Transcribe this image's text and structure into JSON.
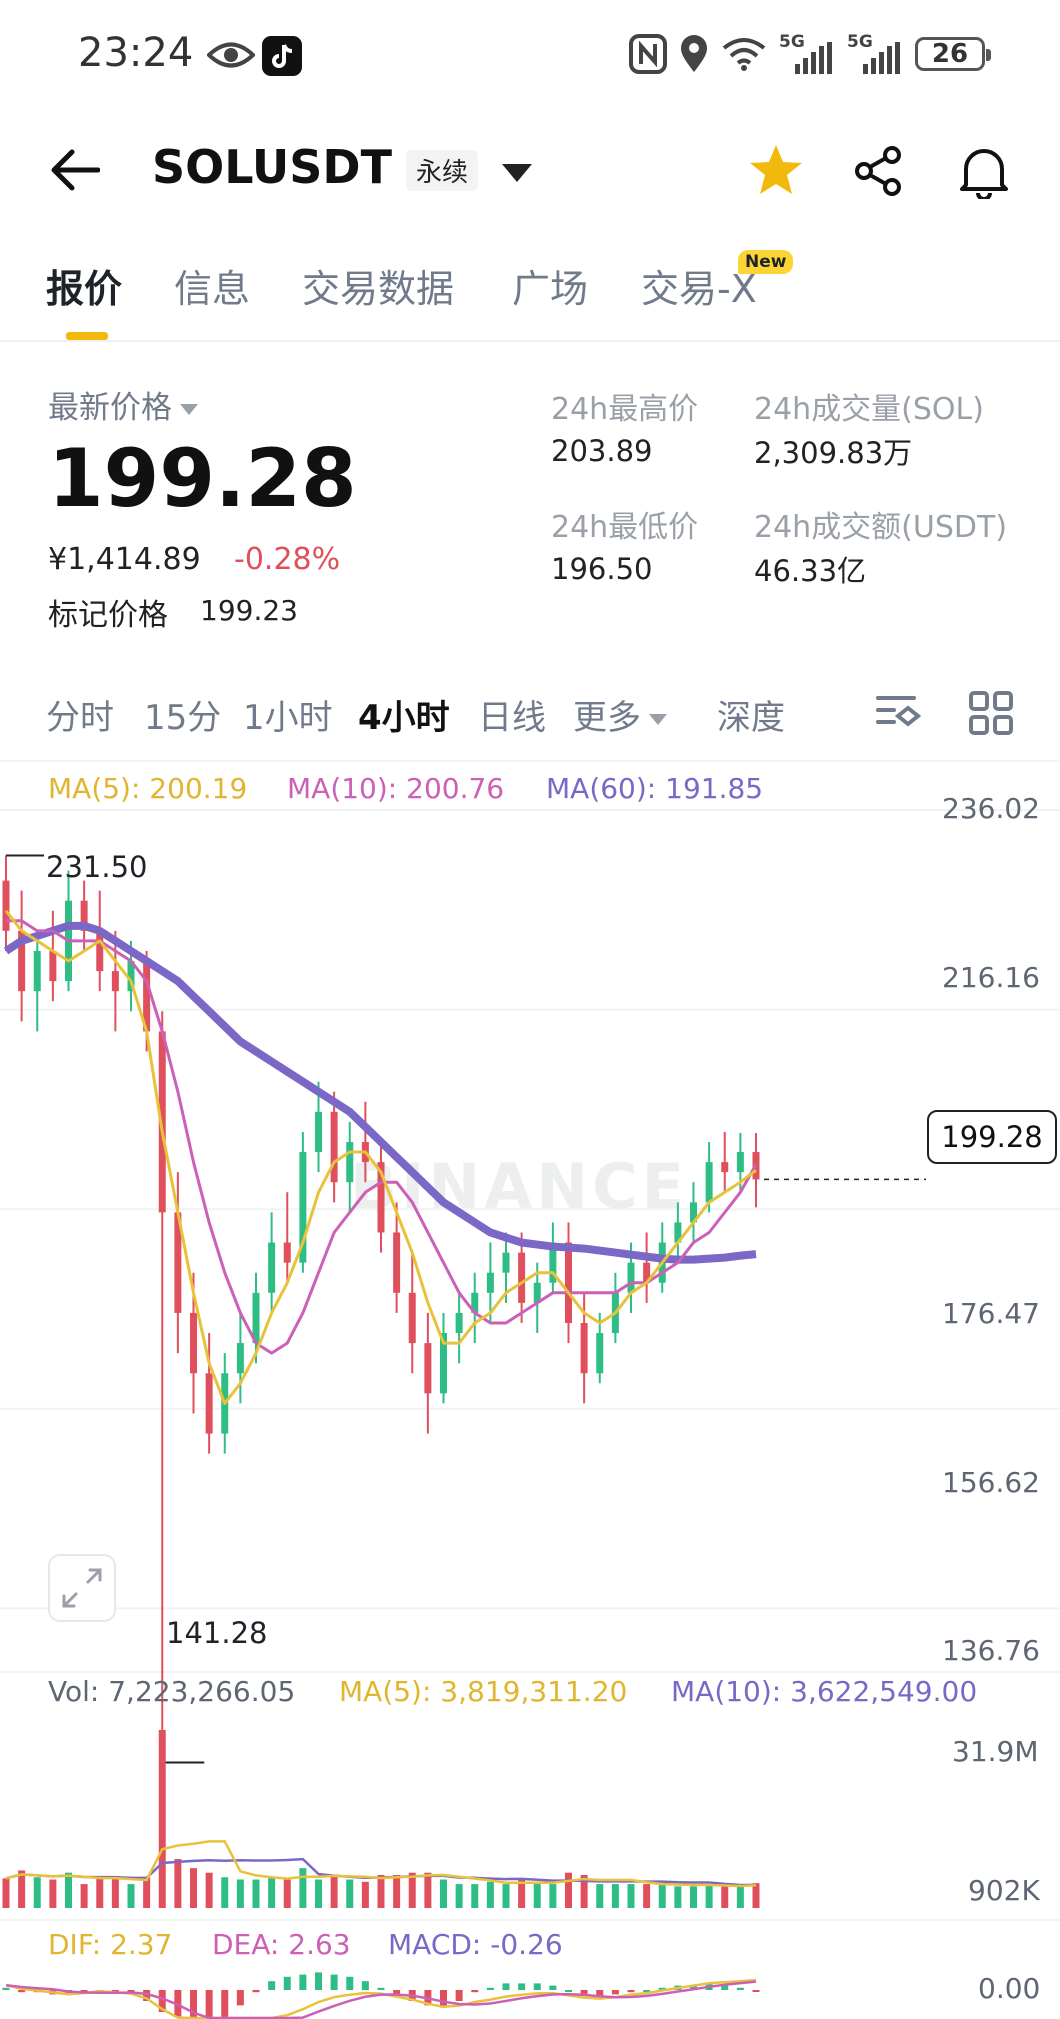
{
  "status_bar": {
    "time": "23:24",
    "battery": "26",
    "net1": "5G",
    "net2": "5G"
  },
  "header": {
    "symbol": "SOLUSDT",
    "contract_tag": "永续"
  },
  "tabs": [
    {
      "label": "报价",
      "active": true
    },
    {
      "label": "信息",
      "active": false
    },
    {
      "label": "交易数据",
      "active": false
    },
    {
      "label": "广场",
      "active": false
    },
    {
      "label": "交易-X",
      "active": false,
      "badge": "New"
    }
  ],
  "ticker": {
    "last_price_label": "最新价格",
    "last_price": "199.28",
    "cny_price": "¥1,414.89",
    "change_pct": "-0.28%",
    "mark_price_label": "标记价格",
    "mark_price": "199.23",
    "high_label": "24h最高价",
    "high": "203.89",
    "low_label": "24h最低价",
    "low": "196.50",
    "vol_label": "24h成交量(SOL)",
    "vol": "2,309.83万",
    "turnover_label": "24h成交额(USDT)",
    "turnover": "46.33亿"
  },
  "periods": [
    "分时",
    "15分",
    "1小时",
    "4小时",
    "日线",
    "更多",
    "深度"
  ],
  "active_period": "4小时",
  "indicators": {
    "ma5": "MA(5): 200.19",
    "ma10": "MA(10): 200.76",
    "ma60": "MA(60): 191.85",
    "vol": "Vol: 7,223,266.05",
    "vol_ma5": "MA(5): 3,819,311.20",
    "vol_ma10": "MA(10): 3,622,549.00",
    "dif": "DIF: 2.37",
    "dea": "DEA: 2.63",
    "macd": "MACD: -0.26"
  },
  "axis": {
    "price_ticks": [
      "236.02",
      "216.16",
      "196.31",
      "176.47",
      "156.62",
      "136.76"
    ],
    "vol_ticks": [
      "31.9M",
      "902K"
    ],
    "macd_tick": "0.00",
    "current_price_tag": "199.28",
    "high_marker": "231.50",
    "low_marker": "141.28"
  },
  "watermark": "BINANCE",
  "colors": {
    "up": "#2ebd85",
    "down": "#e0505c",
    "ma5": "#e8c23a",
    "ma10": "#cc5fb6",
    "ma60": "#7b68c6",
    "accent": "#f0b90b"
  },
  "chart_data": {
    "type": "candlestick",
    "interval": "4h",
    "ylim": [
      136.76,
      236.02
    ],
    "candles": [
      {
        "o": 229,
        "h": 231.5,
        "l": 222,
        "c": 224
      },
      {
        "o": 224,
        "h": 228,
        "l": 215,
        "c": 218
      },
      {
        "o": 218,
        "h": 224,
        "l": 214,
        "c": 222
      },
      {
        "o": 222,
        "h": 226,
        "l": 217,
        "c": 219
      },
      {
        "o": 219,
        "h": 230,
        "l": 218,
        "c": 227
      },
      {
        "o": 227,
        "h": 229,
        "l": 222,
        "c": 224
      },
      {
        "o": 224,
        "h": 228,
        "l": 218,
        "c": 220
      },
      {
        "o": 220,
        "h": 224,
        "l": 214,
        "c": 218
      },
      {
        "o": 218,
        "h": 223,
        "l": 216,
        "c": 221
      },
      {
        "o": 221,
        "h": 222,
        "l": 212,
        "c": 214
      },
      {
        "o": 214,
        "h": 216,
        "l": 141.28,
        "c": 196
      },
      {
        "o": 196,
        "h": 200,
        "l": 182,
        "c": 186
      },
      {
        "o": 186,
        "h": 190,
        "l": 176,
        "c": 180
      },
      {
        "o": 180,
        "h": 184,
        "l": 172,
        "c": 174
      },
      {
        "o": 174,
        "h": 182,
        "l": 172,
        "c": 180
      },
      {
        "o": 180,
        "h": 186,
        "l": 177,
        "c": 183
      },
      {
        "o": 183,
        "h": 190,
        "l": 181,
        "c": 188
      },
      {
        "o": 188,
        "h": 196,
        "l": 186,
        "c": 193
      },
      {
        "o": 193,
        "h": 198,
        "l": 189,
        "c": 191
      },
      {
        "o": 191,
        "h": 204,
        "l": 190,
        "c": 202
      },
      {
        "o": 202,
        "h": 209,
        "l": 200,
        "c": 206
      },
      {
        "o": 206,
        "h": 208,
        "l": 197,
        "c": 199
      },
      {
        "o": 199,
        "h": 205,
        "l": 196,
        "c": 203
      },
      {
        "o": 203,
        "h": 207,
        "l": 199,
        "c": 201
      },
      {
        "o": 201,
        "h": 203,
        "l": 192,
        "c": 194
      },
      {
        "o": 194,
        "h": 197,
        "l": 186,
        "c": 188
      },
      {
        "o": 188,
        "h": 192,
        "l": 180,
        "c": 183
      },
      {
        "o": 183,
        "h": 186,
        "l": 174,
        "c": 178
      },
      {
        "o": 178,
        "h": 186,
        "l": 177,
        "c": 184
      },
      {
        "o": 184,
        "h": 188,
        "l": 181,
        "c": 186
      },
      {
        "o": 186,
        "h": 190,
        "l": 183,
        "c": 188
      },
      {
        "o": 188,
        "h": 193,
        "l": 185,
        "c": 190
      },
      {
        "o": 190,
        "h": 194,
        "l": 187,
        "c": 192
      },
      {
        "o": 192,
        "h": 194,
        "l": 185,
        "c": 187
      },
      {
        "o": 187,
        "h": 191,
        "l": 184,
        "c": 189
      },
      {
        "o": 189,
        "h": 195,
        "l": 188,
        "c": 193
      },
      {
        "o": 193,
        "h": 195,
        "l": 183,
        "c": 185
      },
      {
        "o": 185,
        "h": 188,
        "l": 177,
        "c": 180
      },
      {
        "o": 180,
        "h": 186,
        "l": 179,
        "c": 184
      },
      {
        "o": 184,
        "h": 190,
        "l": 183,
        "c": 188
      },
      {
        "o": 188,
        "h": 193,
        "l": 186,
        "c": 191
      },
      {
        "o": 191,
        "h": 194,
        "l": 187,
        "c": 189
      },
      {
        "o": 189,
        "h": 195,
        "l": 188,
        "c": 193
      },
      {
        "o": 193,
        "h": 197,
        "l": 191,
        "c": 195
      },
      {
        "o": 195,
        "h": 199,
        "l": 193,
        "c": 197
      },
      {
        "o": 197,
        "h": 203,
        "l": 196,
        "c": 201
      },
      {
        "o": 201,
        "h": 204,
        "l": 198,
        "c": 200
      },
      {
        "o": 200,
        "h": 203.9,
        "l": 198,
        "c": 202
      },
      {
        "o": 202,
        "h": 203.89,
        "l": 196.5,
        "c": 199.28
      }
    ],
    "ma5": [
      226,
      224,
      223,
      222,
      221,
      222,
      223,
      221,
      219,
      214,
      204,
      196,
      188,
      181,
      177,
      179,
      182,
      186,
      189,
      193,
      198,
      201,
      202,
      202,
      200,
      196,
      192,
      187,
      183,
      183,
      185,
      186,
      188,
      189,
      190,
      190,
      188,
      186,
      185,
      186,
      188,
      189,
      191,
      193,
      195,
      197,
      198,
      199,
      200.19
    ],
    "ma10": [
      225,
      225,
      224,
      224,
      223,
      223,
      223,
      222,
      221,
      219,
      214,
      208,
      201,
      195,
      190,
      186,
      183,
      182,
      183,
      186,
      190,
      194,
      196,
      198,
      199,
      199,
      197,
      194,
      191,
      188,
      186,
      185,
      185,
      186,
      187,
      188,
      188,
      188,
      188,
      188,
      189,
      189,
      190,
      191,
      193,
      194,
      196,
      198,
      200.76
    ],
    "ma60": [
      222,
      223,
      223.5,
      224,
      224.5,
      224.5,
      224,
      223,
      222,
      221,
      220,
      219,
      217.5,
      216,
      214.5,
      213,
      212,
      211,
      210,
      209,
      208,
      207,
      206,
      204.5,
      203,
      201.5,
      200,
      198.5,
      197,
      196,
      195,
      194,
      193.5,
      193,
      192.8,
      192.6,
      192.5,
      192.4,
      192.2,
      192,
      191.8,
      191.6,
      191.4,
      191.3,
      191.3,
      191.4,
      191.5,
      191.7,
      191.85
    ],
    "volume_max": 31.9,
    "volume_unit": "M"
  }
}
